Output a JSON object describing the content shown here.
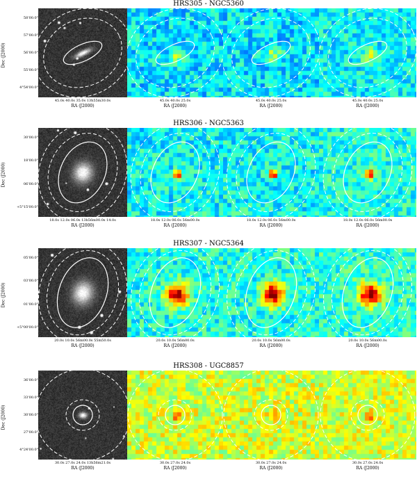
{
  "rows": [
    {
      "title": "HRS305 - NGC5360",
      "ylabel": "Dec (J2000)",
      "yticks": [
        "58'00.0\"",
        "57'00.0\"",
        "56'00.0\"",
        "55'00.0\"",
        "4°54'00.0\""
      ],
      "xlabel": "RA (J2000)",
      "panel_xticks": [
        "45.0s   40.0s 35.0s 13h55m30.0s",
        "45.0s   40.0s   25.0s",
        "45.0s   40.0s   25.0s",
        "45.0s   40.0s   25.0s"
      ],
      "colors": {
        "optical_core": "#ffffff",
        "map_bg": "#2e6de0",
        "map_peak": "#7fd4a8"
      }
    },
    {
      "title": "HRS306 - NGC5363",
      "ylabel": "Dec (J2000)",
      "yticks": [
        "30'00.0\"",
        "18'00.0\"",
        "06'00.0\"",
        "+5°15'00.0\""
      ],
      "xlabel": "RA (J2000)",
      "panel_xticks": [
        "18.0s   12.0s 06.0s 13h56m00.0s 14.0s",
        "18.0s   12.0s 06.0s 56m00.0s",
        "18.0s   12.0s 06.0s 56m00.0s",
        "18.0s   12.0s 06.0s 56m00.0s"
      ],
      "colors": {
        "optical_core": "#ffffff",
        "map_bg": "#3a7ee6",
        "map_peak": "#a01010"
      }
    },
    {
      "title": "HRS307 - NGC5364",
      "ylabel": "Dec (J2000)",
      "yticks": [
        "05'00.0\"",
        "03'00.0\"",
        "01'00.0\"",
        "+5°00'00.0\""
      ],
      "xlabel": "RA (J2000)",
      "panel_xticks": [
        "20.0s   10.0s 56m00.0s 55m50.0s",
        "20.0s   10.0s 56m00.0s",
        "20.0s   10.0s 56m00.0s",
        "20.0s   10.0s 56m00.0s"
      ],
      "colors": {
        "optical_core": "#ffffff",
        "map_bg": "#3c82e8",
        "map_peak": "#8a0a0a"
      }
    },
    {
      "title": "HRS308 - UGC8857",
      "ylabel": "Dec (J2000)",
      "yticks": [
        "36'00.0\"",
        "33'00.0\"",
        "30'00.0\"",
        "27'00.0\"",
        "4°24'00.0\""
      ],
      "xlabel": "RA (J2000)",
      "panel_xticks": [
        "30.0s   27.0s 24.0s 13h56m21.0s",
        "30.0s   27.0s   24.0s",
        "30.0s   27.0s   24.0s",
        "30.0s   27.0s   24.0s"
      ],
      "colors": {
        "optical_core": "#ffffff",
        "map_bg": "#9fdc8a",
        "map_peak": "#f0a020"
      }
    }
  ]
}
